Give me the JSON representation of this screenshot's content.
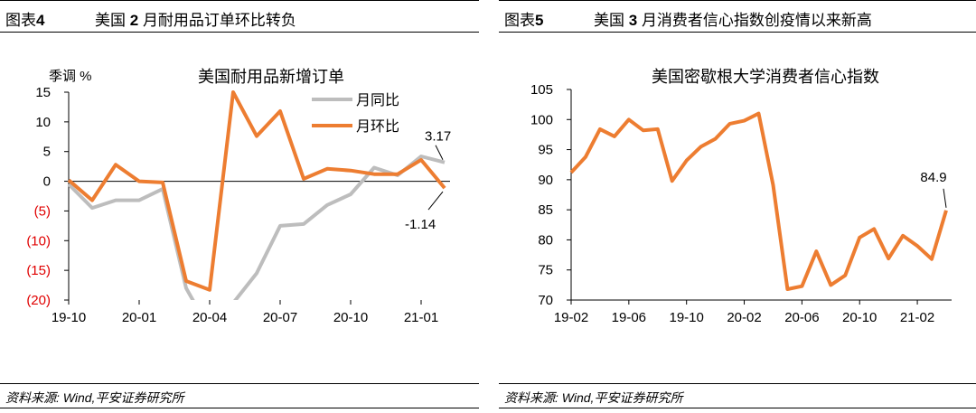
{
  "left_panel": {
    "fig_label": "图表",
    "fig_num": "4",
    "heading_pre": "美国",
    "heading_num": "2",
    "heading_post": "月耐用品订单环比转负",
    "source": "资料来源: Wind,平安证券研究所"
  },
  "right_panel": {
    "fig_label": "图表",
    "fig_num": "5",
    "heading_pre": "美国",
    "heading_num": "3",
    "heading_post": "月消费者信心指数创疫情以来新高",
    "source": "资料来源: Wind,平安证券研究所"
  },
  "chart_data": [
    {
      "type": "line",
      "title": "美国耐用品新增订单",
      "ylabel": "季调 %",
      "ylim": [
        -20,
        15
      ],
      "y_ticks": [
        15,
        10,
        5,
        0,
        -5,
        -10,
        -15,
        -20
      ],
      "y_tick_labels": [
        "15",
        "10",
        "5",
        "0",
        "(5)",
        "(10)",
        "(15)",
        "(20)"
      ],
      "negative_tick_color": "#e00000",
      "x_tick_labels": [
        "19-10",
        "20-01",
        "20-04",
        "20-07",
        "20-10",
        "21-01"
      ],
      "x_tick_index": [
        0,
        3,
        6,
        9,
        12,
        15
      ],
      "legend_position": "top-right",
      "series": [
        {
          "name": "月同比",
          "color": "#bdbdbd",
          "values": [
            -0.5,
            -4.5,
            -3.2,
            -3.2,
            -1.3,
            -18.0,
            -25.0,
            -20.5,
            -15.5,
            -7.5,
            -7.2,
            -4.0,
            -2.2,
            2.3,
            1.0,
            4.2,
            3.17
          ]
        },
        {
          "name": "月环比",
          "color": "#ed7d31",
          "values": [
            0.2,
            -3.2,
            2.8,
            0.0,
            -0.2,
            -16.8,
            -18.3,
            15.0,
            7.6,
            11.8,
            0.4,
            2.1,
            1.8,
            1.2,
            1.2,
            3.6,
            -1.14
          ]
        }
      ],
      "annotations": [
        {
          "text": "3.17",
          "series": "月同比",
          "index": 16
        },
        {
          "text": "-1.14",
          "series": "月环比",
          "index": 16
        }
      ]
    },
    {
      "type": "line",
      "title": "美国密歇根大学消费者信心指数",
      "ylim": [
        70,
        105
      ],
      "y_ticks": [
        105,
        100,
        95,
        90,
        85,
        80,
        75,
        70
      ],
      "x_tick_labels": [
        "19-02",
        "19-06",
        "19-10",
        "20-02",
        "20-06",
        "20-10",
        "21-02"
      ],
      "x_tick_index": [
        0,
        4,
        8,
        12,
        16,
        20,
        24
      ],
      "series": [
        {
          "color": "#ed7d31",
          "values": [
            91.2,
            93.8,
            98.4,
            97.2,
            100.0,
            98.2,
            98.4,
            89.8,
            93.2,
            95.5,
            96.8,
            99.3,
            99.8,
            101.0,
            89.1,
            71.8,
            72.3,
            78.1,
            72.5,
            74.1,
            80.4,
            81.8,
            76.9,
            80.7,
            79.0,
            76.8,
            84.9
          ]
        }
      ],
      "annotations": [
        {
          "text": "84.9",
          "index": 26
        }
      ]
    }
  ]
}
